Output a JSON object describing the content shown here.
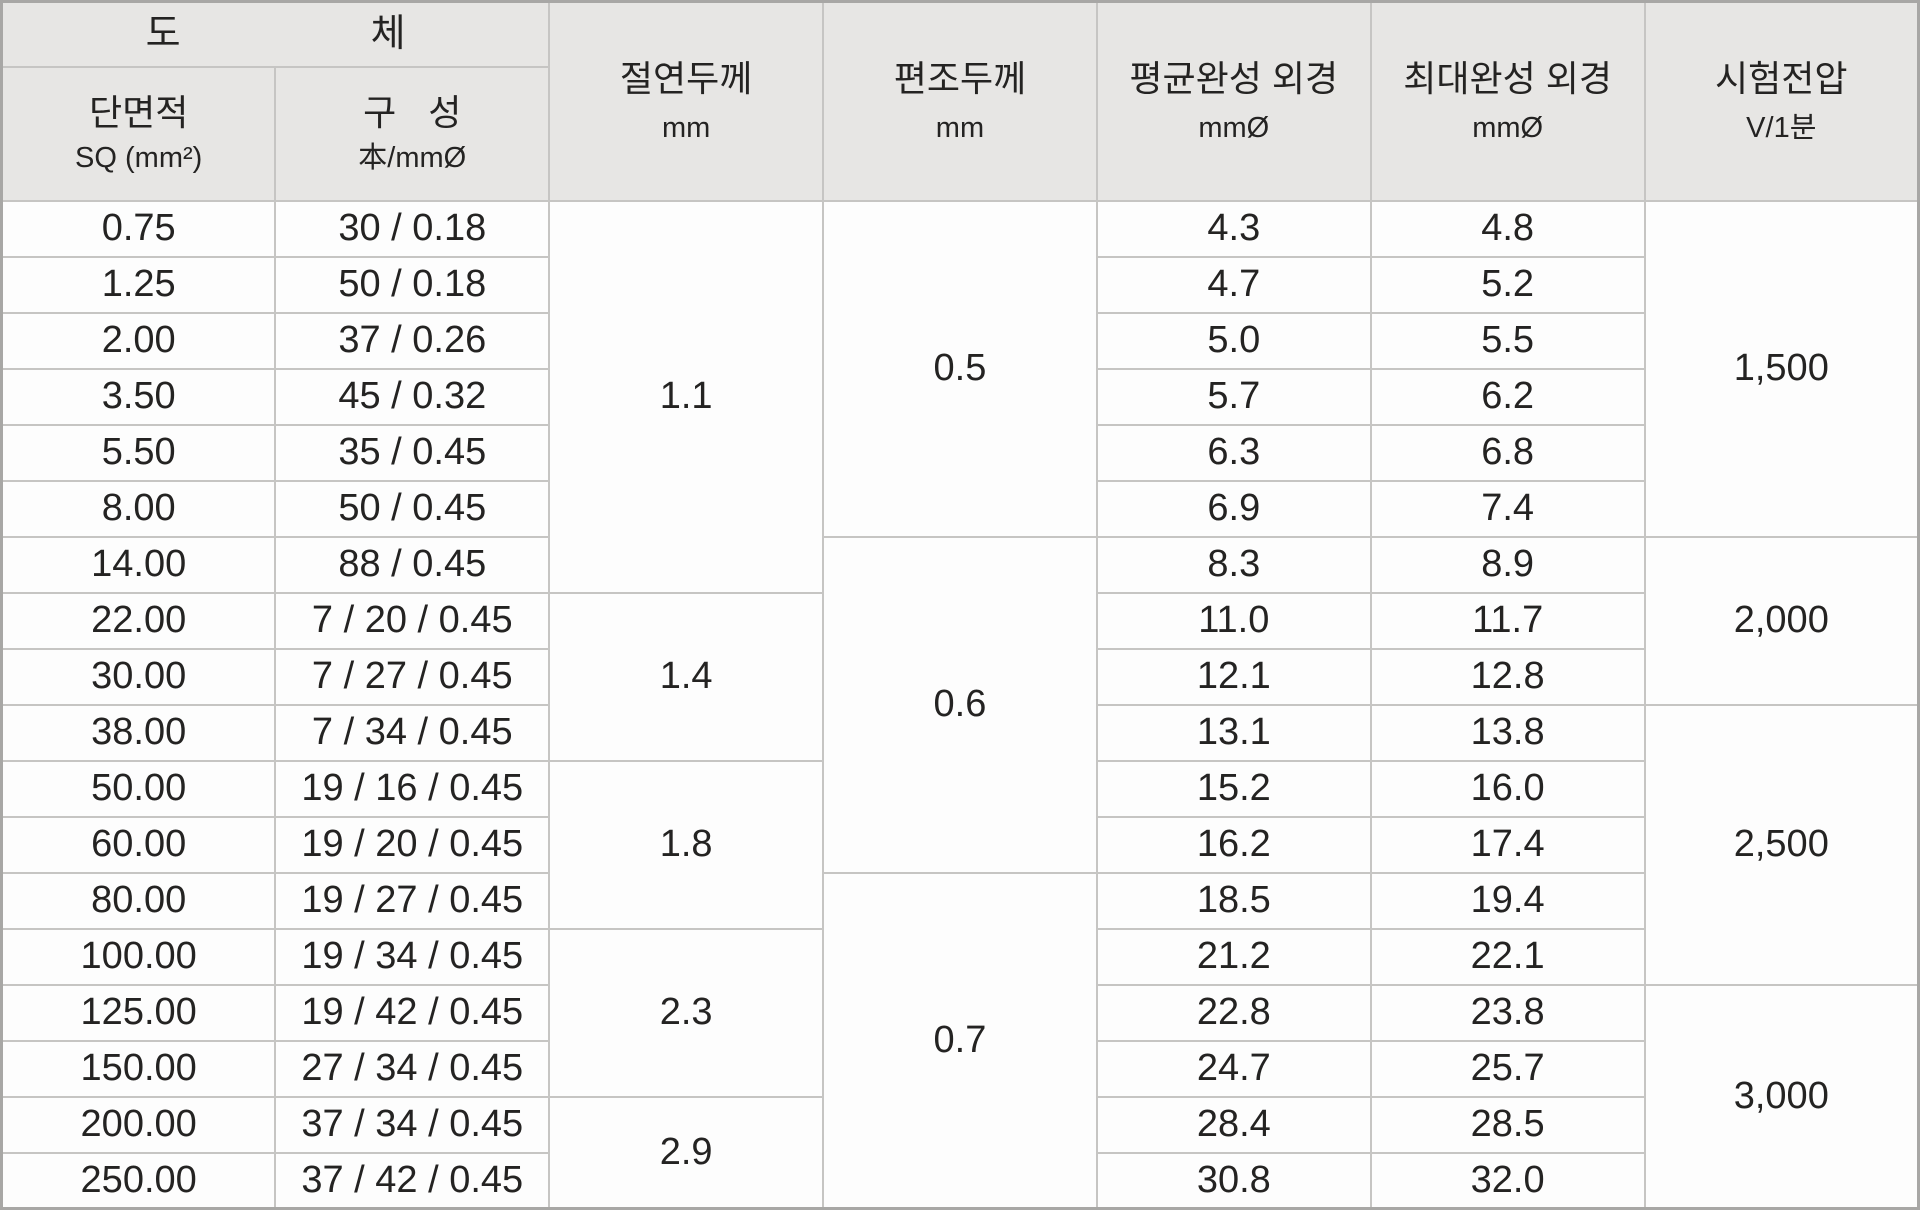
{
  "colors": {
    "header_bg": "#e7e6e4",
    "grid_line": "#c6c5c3",
    "outer_border": "#a8a7a5",
    "cell_bg": "#fdfdfd",
    "text": "#242322"
  },
  "header": {
    "conductor": {
      "left": "도",
      "right": "체"
    },
    "columns": {
      "cross_section": {
        "title": "단면적",
        "unit": "SQ (mm²)"
      },
      "composition": {
        "title": "구 성",
        "unit": "本/mmØ"
      },
      "insulation": {
        "title": "절연두께",
        "unit": "mm"
      },
      "braid": {
        "title": "편조두께",
        "unit": "mm"
      },
      "avg_od": {
        "title": "평균완성 외경",
        "unit": "mmØ"
      },
      "max_od": {
        "title": "최대완성 외경",
        "unit": "mmØ"
      },
      "voltage": {
        "title": "시험전압",
        "unit": "V/1분"
      }
    }
  },
  "body": {
    "rows": [
      {
        "sq": "0.75",
        "composition": "30 / 0.18",
        "avg_od": "4.3",
        "max_od": "4.8"
      },
      {
        "sq": "1.25",
        "composition": "50 / 0.18",
        "avg_od": "4.7",
        "max_od": "5.2"
      },
      {
        "sq": "2.00",
        "composition": "37 / 0.26",
        "avg_od": "5.0",
        "max_od": "5.5"
      },
      {
        "sq": "3.50",
        "composition": "45 / 0.32",
        "avg_od": "5.7",
        "max_od": "6.2"
      },
      {
        "sq": "5.50",
        "composition": "35 / 0.45",
        "avg_od": "6.3",
        "max_od": "6.8"
      },
      {
        "sq": "8.00",
        "composition": "50 / 0.45",
        "avg_od": "6.9",
        "max_od": "7.4"
      },
      {
        "sq": "14.00",
        "composition": "88 / 0.45",
        "avg_od": "8.3",
        "max_od": "8.9"
      },
      {
        "sq": "22.00",
        "composition": "7 / 20 / 0.45",
        "avg_od": "11.0",
        "max_od": "11.7"
      },
      {
        "sq": "30.00",
        "composition": "7 / 27 / 0.45",
        "avg_od": "12.1",
        "max_od": "12.8"
      },
      {
        "sq": "38.00",
        "composition": "7 / 34 / 0.45",
        "avg_od": "13.1",
        "max_od": "13.8"
      },
      {
        "sq": "50.00",
        "composition": "19 / 16 / 0.45",
        "avg_od": "15.2",
        "max_od": "16.0"
      },
      {
        "sq": "60.00",
        "composition": "19 / 20 / 0.45",
        "avg_od": "16.2",
        "max_od": "17.4"
      },
      {
        "sq": "80.00",
        "composition": "19 / 27 / 0.45",
        "avg_od": "18.5",
        "max_od": "19.4"
      },
      {
        "sq": "100.00",
        "composition": "19 / 34 / 0.45",
        "avg_od": "21.2",
        "max_od": "22.1"
      },
      {
        "sq": "125.00",
        "composition": "19 / 42 / 0.45",
        "avg_od": "22.8",
        "max_od": "23.8"
      },
      {
        "sq": "150.00",
        "composition": "27 / 34 / 0.45",
        "avg_od": "24.7",
        "max_od": "25.7"
      },
      {
        "sq": "200.00",
        "composition": "37 / 34 / 0.45",
        "avg_od": "28.4",
        "max_od": "28.5"
      },
      {
        "sq": "250.00",
        "composition": "37 / 42 / 0.45",
        "avg_od": "30.8",
        "max_od": "32.0"
      }
    ],
    "insulation_spans": [
      {
        "value": "1.1",
        "span": 7
      },
      {
        "value": "1.4",
        "span": 3
      },
      {
        "value": "1.8",
        "span": 3
      },
      {
        "value": "2.3",
        "span": 3
      },
      {
        "value": "2.9",
        "span": 2
      }
    ],
    "braid_spans": [
      {
        "value": "0.5",
        "span": 6
      },
      {
        "value": "0.6",
        "span": 6
      },
      {
        "value": "0.7",
        "span": 6
      }
    ],
    "voltage_spans": [
      {
        "value": "1,500",
        "span": 6
      },
      {
        "value": "2,000",
        "span": 3
      },
      {
        "value": "2,500",
        "span": 5
      },
      {
        "value": "3,000",
        "span": 4
      }
    ]
  }
}
